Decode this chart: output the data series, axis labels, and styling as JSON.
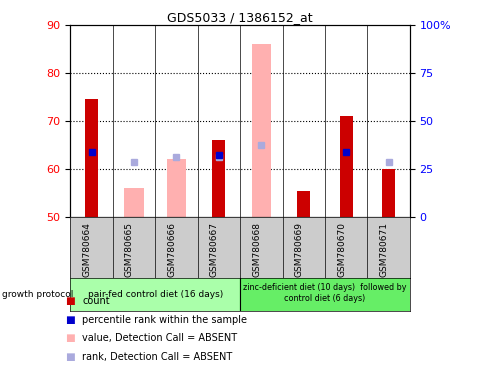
{
  "title": "GDS5033 / 1386152_at",
  "samples": [
    "GSM780664",
    "GSM780665",
    "GSM780666",
    "GSM780667",
    "GSM780668",
    "GSM780669",
    "GSM780670",
    "GSM780671"
  ],
  "count_values": [
    74.5,
    null,
    null,
    66.0,
    null,
    55.5,
    71.0,
    60.0
  ],
  "count_absent_values": [
    null,
    56.0,
    62.0,
    null,
    null,
    null,
    null,
    null
  ],
  "rank_values": [
    63.5,
    null,
    null,
    63.0,
    null,
    null,
    63.5,
    null
  ],
  "rank_absent_values": [
    null,
    61.5,
    62.5,
    62.5,
    65.0,
    null,
    null,
    61.5
  ],
  "absent_bar_values": [
    null,
    null,
    62.0,
    null,
    86.0,
    null,
    null,
    null
  ],
  "ylim": [
    50,
    90
  ],
  "y2lim": [
    0,
    100
  ],
  "yticks": [
    50,
    60,
    70,
    80,
    90
  ],
  "y2ticks": [
    0,
    25,
    50,
    75,
    100
  ],
  "y2ticklabels": [
    "0",
    "25",
    "50",
    "75",
    "100%"
  ],
  "grid_values": [
    60,
    70,
    80
  ],
  "count_color": "#cc0000",
  "absent_bar_color": "#ffb0b0",
  "rank_color": "#0000cc",
  "rank_absent_color": "#aaaadd",
  "group1_label": "pair-fed control diet (16 days)",
  "group2_label": "zinc-deficient diet (10 days)  followed by\ncontrol diet (6 days)",
  "group1_indices": [
    0,
    1,
    2,
    3
  ],
  "group2_indices": [
    4,
    5,
    6,
    7
  ],
  "group1_bg": "#aaffaa",
  "group2_bg": "#66ee66",
  "sample_bg": "#cccccc",
  "legend_items": [
    {
      "label": "count",
      "color": "#cc0000"
    },
    {
      "label": "percentile rank within the sample",
      "color": "#0000cc"
    },
    {
      "label": "value, Detection Call = ABSENT",
      "color": "#ffb0b0"
    },
    {
      "label": "rank, Detection Call = ABSENT",
      "color": "#aaaadd"
    }
  ],
  "bar_width": 0.3,
  "absent_bar_width": 0.45,
  "protocol_label": "growth protocol"
}
